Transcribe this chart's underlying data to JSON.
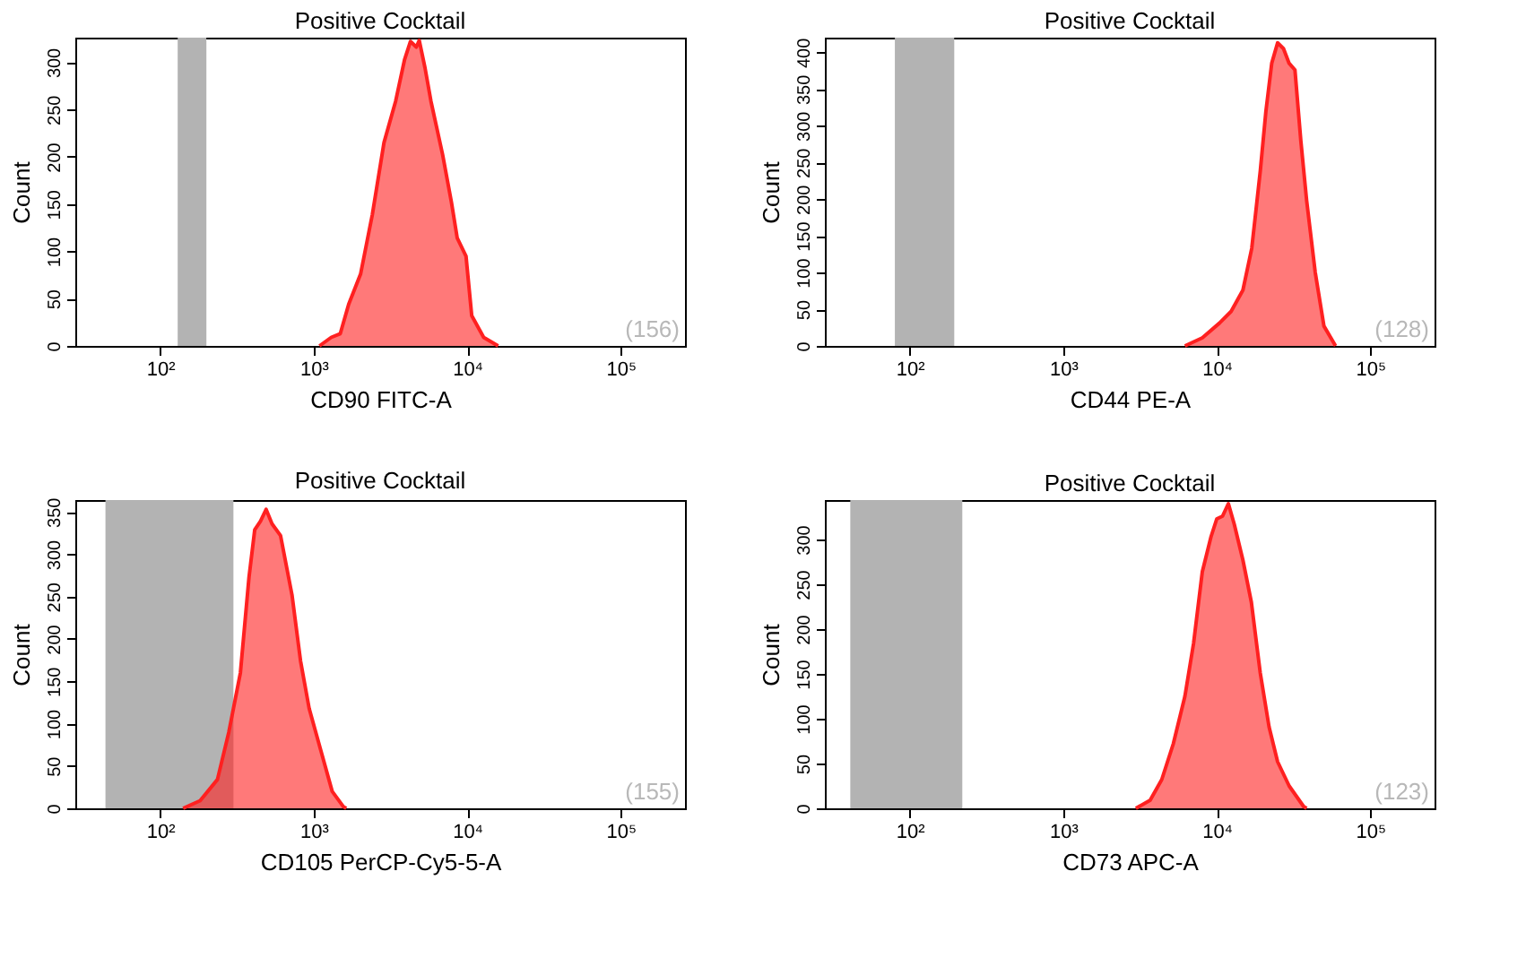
{
  "chart_data": [
    {
      "type": "area",
      "title": "Positive Cocktail",
      "xlabel": "CD90 FITC-A",
      "ylabel": "Count",
      "log": "x",
      "grid": false,
      "xlim": [
        28,
        262144
      ],
      "xticks": [
        {
          "value": 100,
          "label": "10²"
        },
        {
          "value": 1000,
          "label": "10³"
        },
        {
          "value": 10000,
          "label": "10⁴"
        },
        {
          "value": 100000,
          "label": "10⁵"
        }
      ],
      "ylim": [
        0,
        326
      ],
      "yticks": [
        0,
        50,
        100,
        150,
        200,
        250,
        300
      ],
      "series": [
        {
          "color": "#ff2020",
          "x": [
            1090,
            1300,
            1490,
            1690,
            2020,
            2410,
            2870,
            3420,
            3910,
            4270,
            4660,
            4870,
            5310,
            5800,
            6920,
            7890,
            8610,
            9820,
            10700,
            12800,
            15900
          ],
          "values": [
            0,
            9,
            13,
            44,
            76,
            139,
            215,
            259,
            303,
            322,
            316,
            323,
            294,
            259,
            202,
            152,
            114,
            95,
            32,
            9,
            0
          ]
        }
      ],
      "bands": [
        {
          "axis": "x",
          "from": 130,
          "to": 200,
          "color": "#b3b3b3"
        }
      ],
      "annotations": [
        "(156)"
      ]
    },
    {
      "type": "area",
      "title": "Positive Cocktail",
      "xlabel": "CD44 PE-A",
      "ylabel": "Count",
      "log": "x",
      "grid": false,
      "xlim": [
        28,
        262144
      ],
      "xticks": [
        {
          "value": 100,
          "label": "10²"
        },
        {
          "value": 1000,
          "label": "10³"
        },
        {
          "value": 10000,
          "label": "10⁴"
        },
        {
          "value": 100000,
          "label": "10⁵"
        }
      ],
      "ylim": [
        0,
        420
      ],
      "yticks": [
        0,
        50,
        100,
        150,
        200,
        250,
        300,
        350,
        400
      ],
      "series": [
        {
          "color": "#ff2020",
          "x": [
            6200,
            8050,
            10400,
            12400,
            14800,
            16900,
            19200,
            20900,
            22800,
            24900,
            27200,
            29600,
            32300,
            35300,
            38500,
            43800,
            49900,
            59400
          ],
          "values": [
            0,
            11,
            31,
            47,
            76,
            133,
            238,
            320,
            385,
            413,
            405,
            385,
            376,
            279,
            198,
            100,
            27,
            0
          ]
        }
      ],
      "bands": [
        {
          "axis": "x",
          "from": 80,
          "to": 195,
          "color": "#b3b3b3"
        }
      ],
      "annotations": [
        "(128)"
      ]
    },
    {
      "type": "area",
      "title": "Positive Cocktail",
      "xlabel": "CD105 PerCP-Cy5-5-A",
      "ylabel": "Count",
      "log": "x",
      "grid": false,
      "xlim": [
        28,
        262144
      ],
      "xticks": [
        {
          "value": 100,
          "label": "10²"
        },
        {
          "value": 1000,
          "label": "10³"
        },
        {
          "value": 10000,
          "label": "10⁴"
        },
        {
          "value": 100000,
          "label": "10⁵"
        }
      ],
      "ylim": [
        0,
        364
      ],
      "yticks": [
        0,
        50,
        100,
        150,
        200,
        250,
        300,
        350
      ],
      "series": [
        {
          "color": "#ff2020",
          "x": [
            141,
            182,
            236,
            280,
            333,
            379,
            413,
            450,
            490,
            535,
            608,
            722,
            821,
            934,
            1110,
            1320,
            1560,
            1630
          ],
          "values": [
            0,
            9,
            34,
            90,
            160,
            273,
            329,
            339,
            353,
            336,
            322,
            252,
            174,
            118,
            69,
            20,
            2,
            0
          ]
        }
      ],
      "bands": [
        {
          "axis": "x",
          "from": 44,
          "to": 300,
          "color": "#b3b3b3"
        }
      ],
      "annotations": [
        "(155)"
      ]
    },
    {
      "type": "area",
      "title": "Positive Cocktail",
      "xlabel": "CD73 APC-A",
      "ylabel": "Count",
      "log": "x",
      "grid": false,
      "xlim": [
        28,
        262144
      ],
      "xticks": [
        {
          "value": 100,
          "label": "10²"
        },
        {
          "value": 1000,
          "label": "10³"
        },
        {
          "value": 10000,
          "label": "10⁴"
        },
        {
          "value": 100000,
          "label": "10⁵"
        }
      ],
      "ylim": [
        0,
        344
      ],
      "yticks": [
        0,
        50,
        100,
        150,
        200,
        250,
        300
      ],
      "series": [
        {
          "color": "#ff2020",
          "x": [
            2970,
            3680,
            4380,
            5210,
            6200,
            7060,
            8050,
            9170,
            10000,
            10900,
            11900,
            13000,
            14800,
            16800,
            19200,
            21900,
            24900,
            29600,
            36800,
            38500
          ],
          "values": [
            0,
            9,
            32,
            72,
            125,
            184,
            264,
            303,
            323,
            326,
            340,
            317,
            277,
            230,
            151,
            91,
            52,
            25,
            2,
            0
          ]
        }
      ],
      "bands": [
        {
          "axis": "x",
          "from": 41,
          "to": 220,
          "color": "#b3b3b3"
        }
      ],
      "annotations": [
        "(123)"
      ]
    }
  ]
}
